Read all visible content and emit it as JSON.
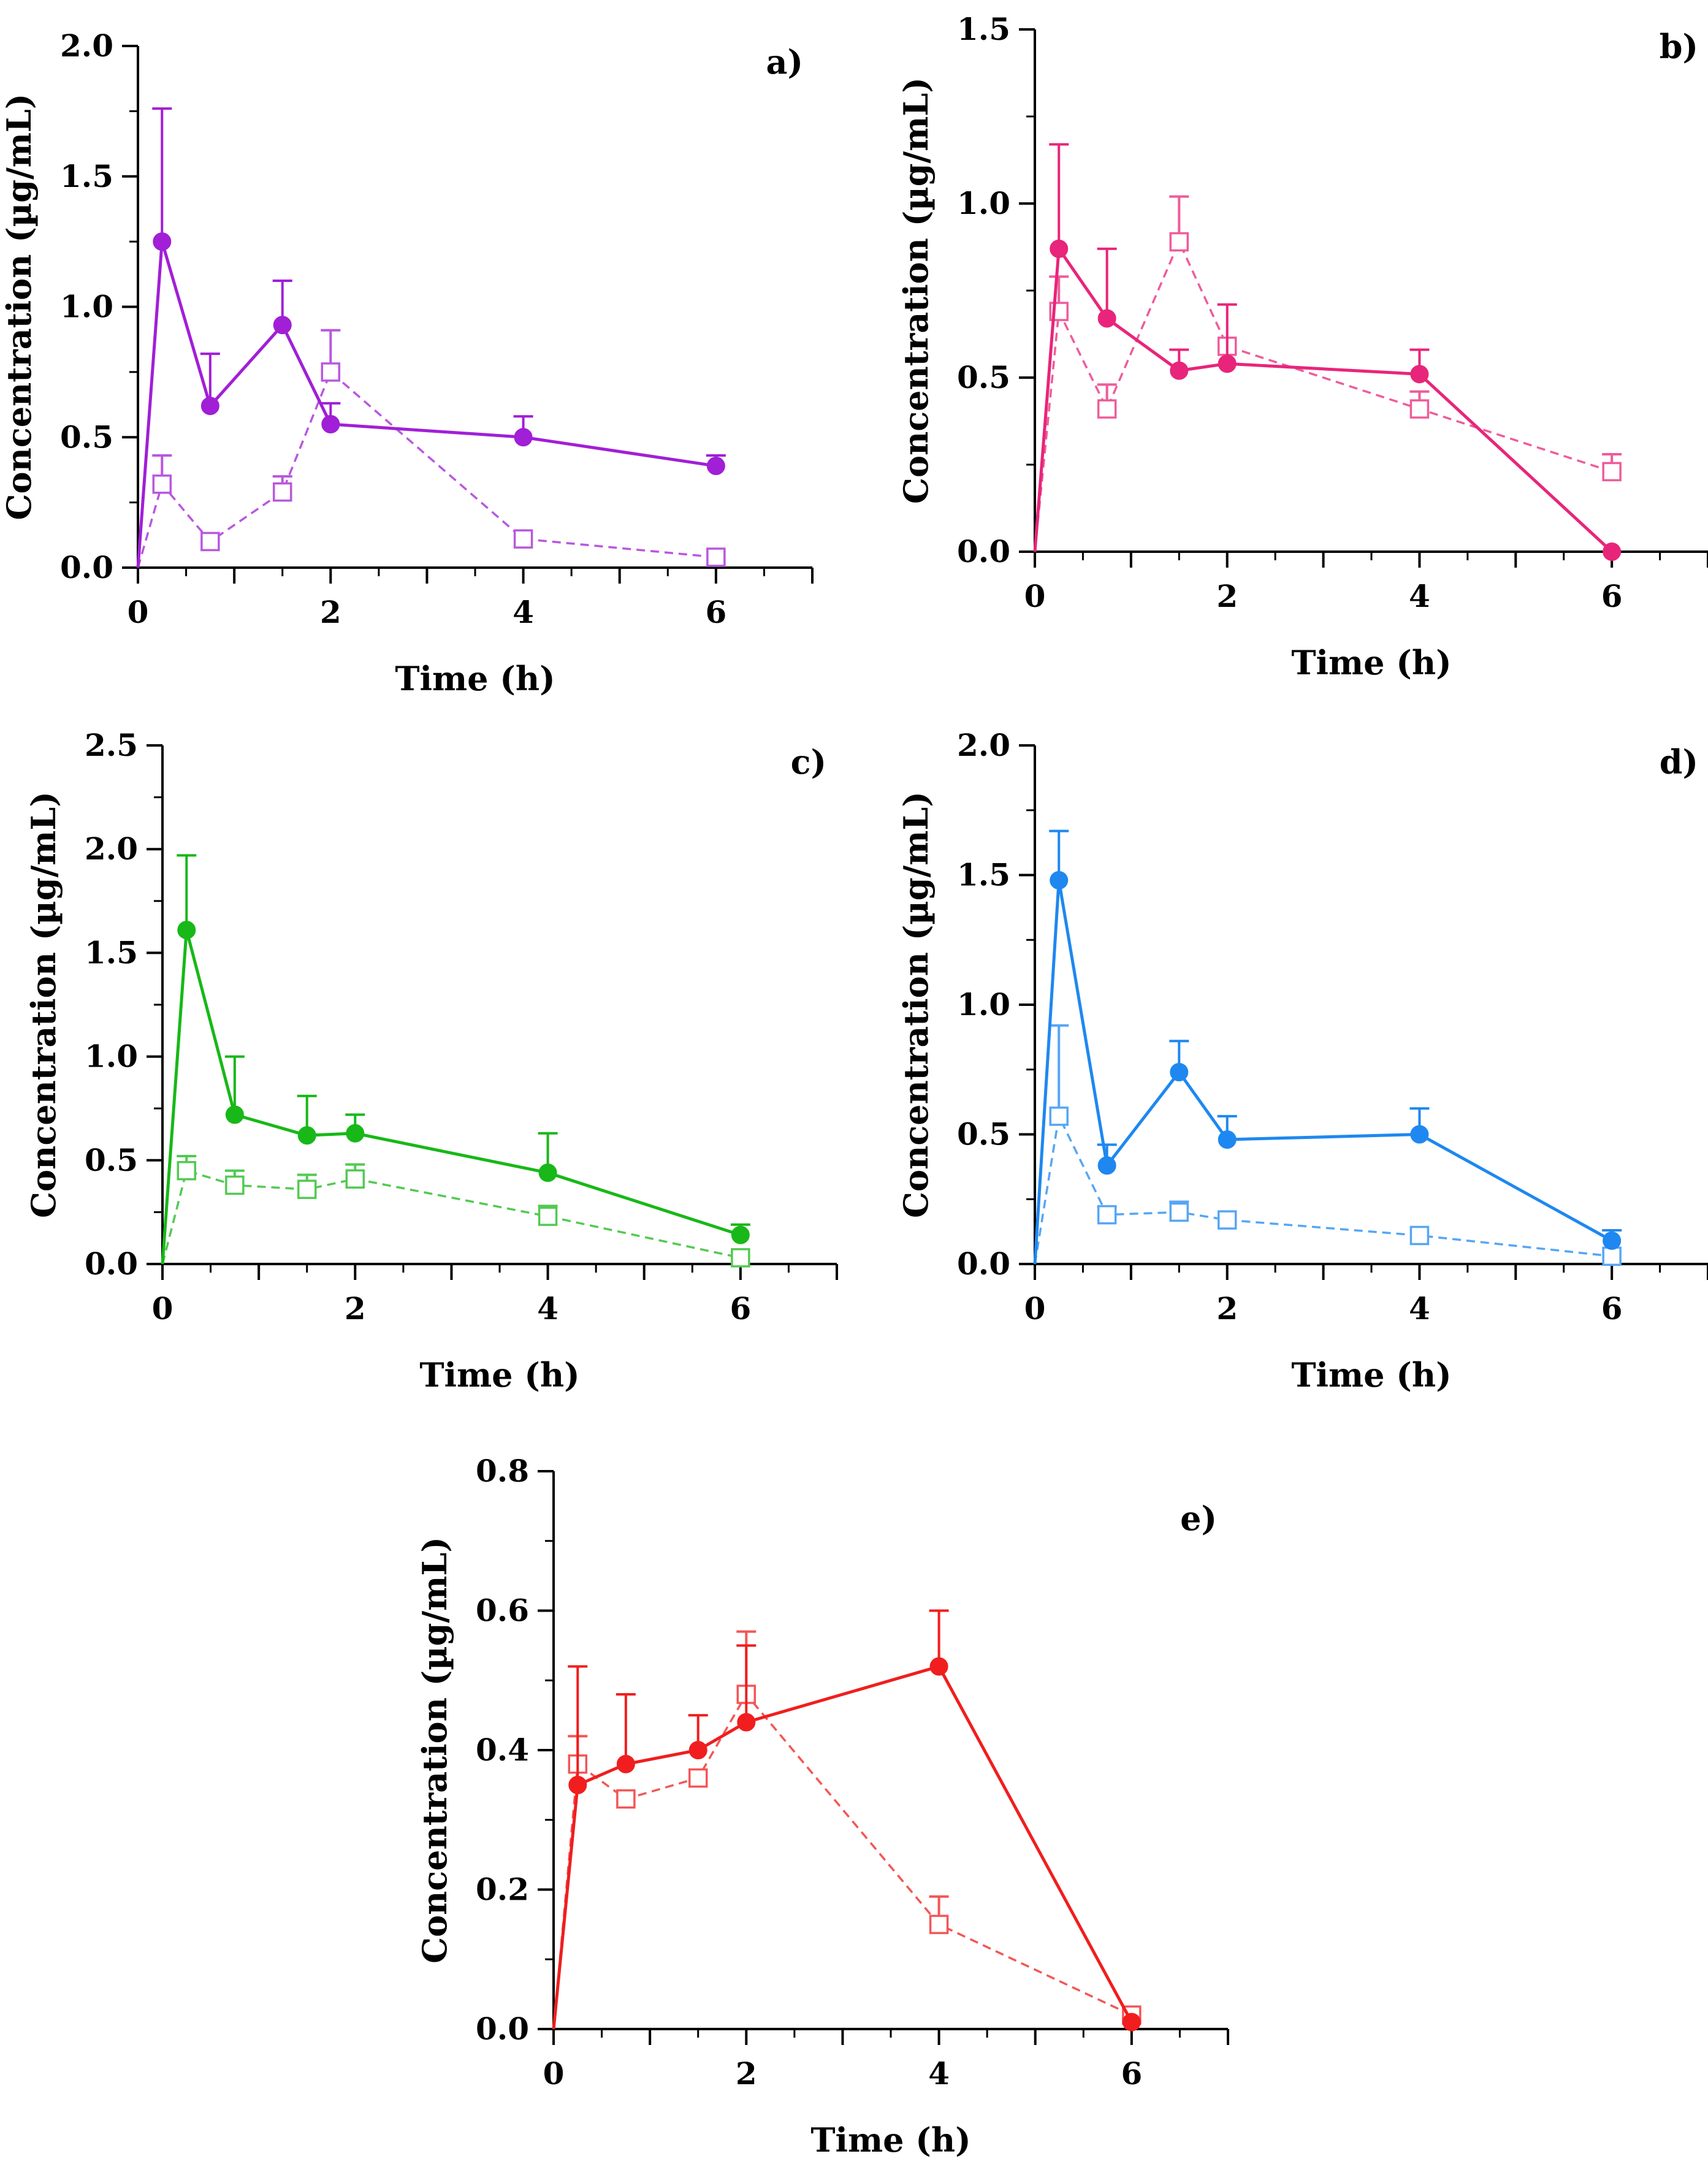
{
  "chart_data": [
    {
      "type": "line",
      "panel_label": "a)",
      "xlabel": "Time (h)",
      "ylabel": "Concentration (µg/mL)",
      "xlim": [
        0,
        7
      ],
      "ylim": [
        0,
        2.0
      ],
      "xticks": [
        0,
        2,
        4,
        6
      ],
      "xtick_labels": [
        "0",
        "2",
        "4",
        "6"
      ],
      "yticks": [
        0,
        0.5,
        1.0,
        1.5,
        2.0
      ],
      "ytick_labels": [
        "0.0",
        "0.5",
        "1.0",
        "1.5",
        "2.0"
      ],
      "color": "#a11fd6",
      "series": [
        {
          "name": "solid-circle",
          "style": "solid",
          "marker": "circle",
          "x": [
            0,
            0.25,
            0.75,
            1.5,
            2,
            4,
            6
          ],
          "values": [
            0,
            1.25,
            0.62,
            0.93,
            0.55,
            0.5,
            0.39
          ],
          "err": [
            0,
            0.51,
            0.2,
            0.17,
            0.08,
            0.08,
            0.04
          ]
        },
        {
          "name": "dashed-square",
          "style": "dashed",
          "marker": "square",
          "x": [
            0,
            0.25,
            0.75,
            1.5,
            2,
            4,
            6
          ],
          "values": [
            0,
            0.32,
            0.1,
            0.29,
            0.75,
            0.11,
            0.04
          ],
          "err": [
            0,
            0.11,
            0.0,
            0.06,
            0.16,
            0.0,
            0.0
          ]
        }
      ]
    },
    {
      "type": "line",
      "panel_label": "b)",
      "xlabel": "Time (h)",
      "ylabel": "Concentration (µg/mL)",
      "xlim": [
        0,
        7
      ],
      "ylim": [
        0,
        1.5
      ],
      "xticks": [
        0,
        2,
        4,
        6
      ],
      "xtick_labels": [
        "0",
        "2",
        "4",
        "6"
      ],
      "yticks": [
        0,
        0.5,
        1.0,
        1.5
      ],
      "ytick_labels": [
        "0.0",
        "0.5",
        "1.0",
        "1.5"
      ],
      "color": "#e8257a",
      "series": [
        {
          "name": "solid-circle",
          "style": "solid",
          "marker": "circle",
          "x": [
            0,
            0.25,
            0.75,
            1.5,
            2,
            4,
            6
          ],
          "values": [
            0,
            0.87,
            0.67,
            0.52,
            0.54,
            0.51,
            0.0
          ],
          "err": [
            0,
            0.3,
            0.2,
            0.06,
            0.17,
            0.07,
            0
          ]
        },
        {
          "name": "dashed-square",
          "style": "dashed",
          "marker": "square",
          "x": [
            0,
            0.25,
            0.75,
            1.5,
            2,
            4,
            6
          ],
          "values": [
            0,
            0.69,
            0.41,
            0.89,
            0.59,
            0.41,
            0.23
          ],
          "err": [
            0,
            0.1,
            0.07,
            0.13,
            0.0,
            0.05,
            0.05
          ]
        }
      ]
    },
    {
      "type": "line",
      "panel_label": "c)",
      "xlabel": "Time (h)",
      "ylabel": "Concentration (µg/mL)",
      "xlim": [
        0,
        7
      ],
      "ylim": [
        0,
        2.5
      ],
      "xticks": [
        0,
        2,
        4,
        6
      ],
      "xtick_labels": [
        "0",
        "2",
        "4",
        "6"
      ],
      "yticks": [
        0,
        0.5,
        1.0,
        1.5,
        2.0,
        2.5
      ],
      "ytick_labels": [
        "0.0",
        "0.5",
        "1.0",
        "1.5",
        "2.0",
        "2.5"
      ],
      "color": "#18b818",
      "series": [
        {
          "name": "solid-circle",
          "style": "solid",
          "marker": "circle",
          "x": [
            0,
            0.25,
            0.75,
            1.5,
            2,
            4,
            6
          ],
          "values": [
            0,
            1.61,
            0.72,
            0.62,
            0.63,
            0.44,
            0.14
          ],
          "err": [
            0,
            0.36,
            0.28,
            0.19,
            0.09,
            0.19,
            0.05
          ]
        },
        {
          "name": "dashed-square",
          "style": "dashed",
          "marker": "square",
          "x": [
            0,
            0.25,
            0.75,
            1.5,
            2,
            4,
            6
          ],
          "values": [
            0,
            0.45,
            0.38,
            0.36,
            0.41,
            0.23,
            0.03
          ],
          "err": [
            0,
            0.07,
            0.07,
            0.07,
            0.07,
            0.05,
            0.0
          ]
        }
      ]
    },
    {
      "type": "line",
      "panel_label": "d)",
      "xlabel": "Time (h)",
      "ylabel": "Concentration (µg/mL)",
      "xlim": [
        0,
        7
      ],
      "ylim": [
        0,
        2.0
      ],
      "xticks": [
        0,
        2,
        4,
        6
      ],
      "xtick_labels": [
        "0",
        "2",
        "4",
        "6"
      ],
      "yticks": [
        0,
        0.5,
        1.0,
        1.5,
        2.0
      ],
      "ytick_labels": [
        "0.0",
        "0.5",
        "1.0",
        "1.5",
        "2.0"
      ],
      "color": "#1e88f0",
      "series": [
        {
          "name": "solid-circle",
          "style": "solid",
          "marker": "circle",
          "x": [
            0,
            0.25,
            0.75,
            1.5,
            2,
            4,
            6
          ],
          "values": [
            0,
            1.48,
            0.38,
            0.74,
            0.48,
            0.5,
            0.09
          ],
          "err": [
            0,
            0.19,
            0.08,
            0.12,
            0.09,
            0.1,
            0.04
          ]
        },
        {
          "name": "dashed-square",
          "style": "dashed",
          "marker": "square",
          "x": [
            0,
            0.25,
            0.75,
            1.5,
            2,
            4,
            6
          ],
          "values": [
            0,
            0.57,
            0.19,
            0.2,
            0.17,
            0.11,
            0.03
          ],
          "err": [
            0,
            0.35,
            0.03,
            0.04,
            0.0,
            0.0,
            0.0
          ]
        }
      ]
    },
    {
      "type": "line",
      "panel_label": "e)",
      "xlabel": "Time (h)",
      "ylabel": "Concentration (µg/mL)",
      "xlim": [
        0,
        7
      ],
      "ylim": [
        0,
        0.8
      ],
      "xticks": [
        0,
        2,
        4,
        6
      ],
      "xtick_labels": [
        "0",
        "2",
        "4",
        "6"
      ],
      "yticks": [
        0,
        0.2,
        0.4,
        0.6,
        0.8
      ],
      "ytick_labels": [
        "0.0",
        "0.2",
        "0.4",
        "0.6",
        "0.8"
      ],
      "color": "#f01e1e",
      "series": [
        {
          "name": "solid-circle",
          "style": "solid",
          "marker": "circle",
          "x": [
            0,
            0.25,
            0.75,
            1.5,
            2,
            4,
            6
          ],
          "values": [
            0,
            0.35,
            0.38,
            0.4,
            0.44,
            0.52,
            0.01
          ],
          "err": [
            0,
            0.17,
            0.1,
            0.05,
            0.11,
            0.08,
            0
          ]
        },
        {
          "name": "dashed-square",
          "style": "dashed",
          "marker": "square",
          "x": [
            0,
            0.25,
            0.75,
            1.5,
            2,
            4,
            6
          ],
          "values": [
            0,
            0.38,
            0.33,
            0.36,
            0.48,
            0.15,
            0.02
          ],
          "err": [
            0,
            0.04,
            0.0,
            0.0,
            0.09,
            0.04,
            0.0
          ]
        }
      ]
    }
  ]
}
